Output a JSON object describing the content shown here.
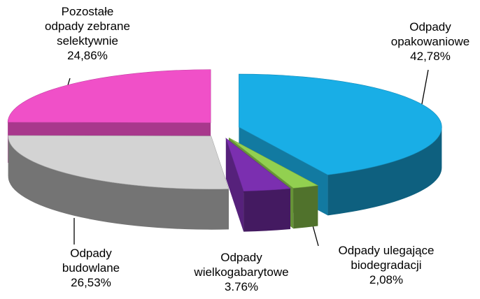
{
  "chart_data": {
    "type": "pie",
    "categories": [
      "Odpady\nopakowaniowe",
      "Odpady ulegające\nbiodegradacji",
      "Odpady\nwielkogabarytowe",
      "Odpady\nbudowlane",
      "Pozostałe\nodpady zebrane\nselektywnie"
    ],
    "values": [
      42.78,
      2.08,
      3.76,
      26.53,
      24.86
    ],
    "value_labels": [
      "42,78%",
      "2,08%",
      "3.76%",
      "26,53%",
      "24,86%"
    ],
    "colors": [
      "#19aee6",
      "#92d050",
      "#7b2fb0",
      "#d3d3d3",
      "#f050c8"
    ]
  }
}
